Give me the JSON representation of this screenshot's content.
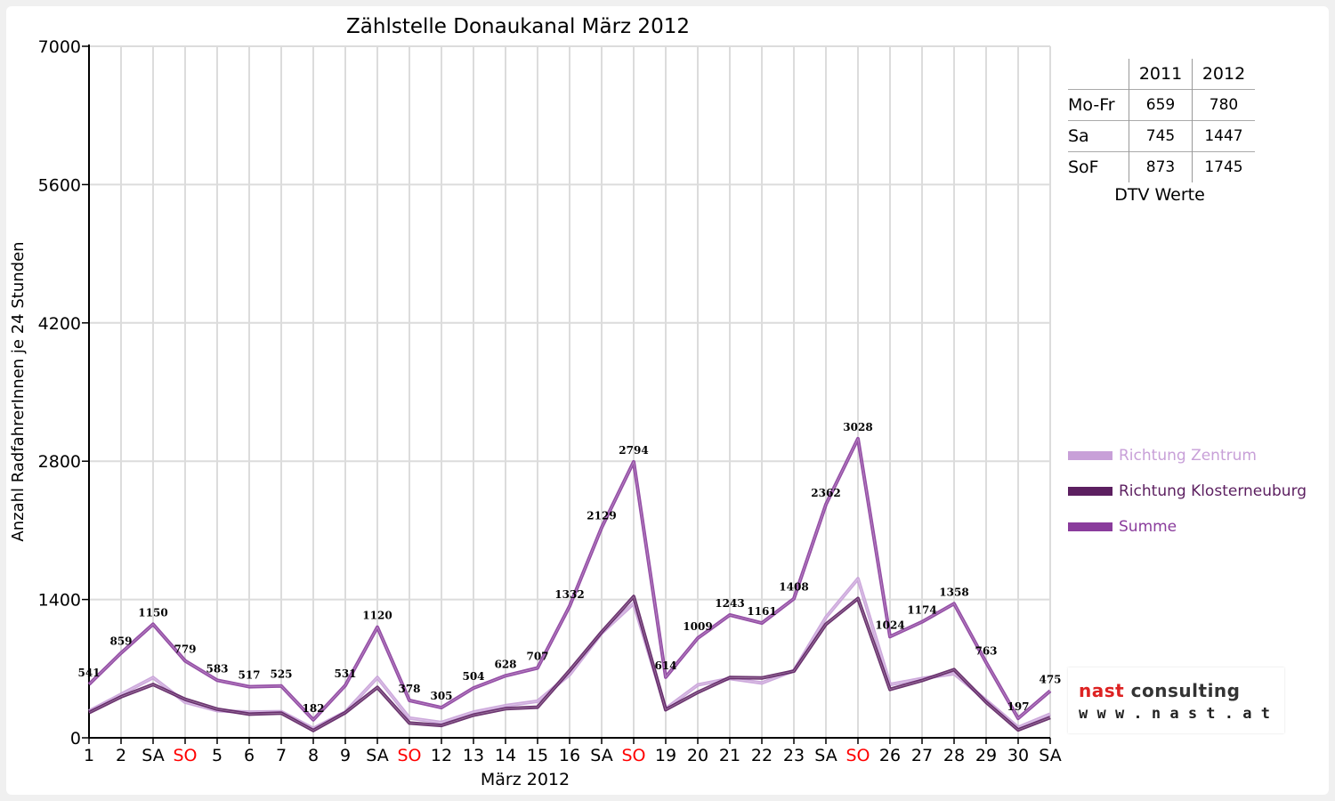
{
  "chart_data": {
    "type": "line",
    "title": "Zählstelle Donaukanal März 2012",
    "xlabel": "März 2012",
    "ylabel": "Anzahl RadfahrerInnen je 24 Stunden",
    "ylim": [
      0,
      7000
    ],
    "yticks": [
      "0",
      "1400",
      "2800",
      "4200",
      "5600",
      "7000"
    ],
    "grid": true,
    "legend_position": "right",
    "categories": [
      "1",
      "2",
      "SA",
      "SO",
      "5",
      "6",
      "7",
      "8",
      "9",
      "SA",
      "SO",
      "12",
      "13",
      "14",
      "15",
      "16",
      "SA",
      "SO",
      "19",
      "20",
      "21",
      "22",
      "23",
      "SA",
      "SO",
      "26",
      "27",
      "28",
      "29",
      "30",
      "SA"
    ],
    "weekend_colors": {
      "SO": "#ff0000"
    },
    "series": [
      {
        "name": "Richtung Zentrum",
        "color": "#c8a0d8",
        "values": [
          270,
          440,
          610,
          360,
          275,
          260,
          265,
          95,
          260,
          610,
          200,
          155,
          260,
          325,
          370,
          640,
          1060,
          1360,
          295,
          535,
          600,
          555,
          680,
          1220,
          1610,
          540,
          600,
          650,
          380,
          105,
          240
        ]
      },
      {
        "name": "Richtung Klosterneuburg",
        "color": "#5c1f60",
        "values": [
          255,
          415,
          540,
          390,
          290,
          240,
          250,
          75,
          255,
          510,
          150,
          125,
          230,
          295,
          310,
          680,
          1070,
          1430,
          285,
          460,
          610,
          605,
          675,
          1150,
          1410,
          490,
          580,
          690,
          360,
          80,
          205
        ]
      },
      {
        "name": "Summe",
        "color": "#8a3c9c",
        "values": [
          541,
          859,
          1150,
          779,
          583,
          517,
          525,
          182,
          531,
          1120,
          378,
          305,
          504,
          628,
          707,
          1332,
          2129,
          2794,
          614,
          1009,
          1243,
          1161,
          1408,
          2362,
          3028,
          1024,
          1174,
          1358,
          763,
          197,
          475
        ]
      }
    ],
    "data_labels": [
      "541",
      "859",
      "1150",
      "779",
      "583",
      "517",
      "525",
      "182",
      "531",
      "1120",
      "378",
      "305",
      "504",
      "628",
      "707",
      "1332",
      "2129",
      "2794",
      "614",
      "1009",
      "1243",
      "1161",
      "1408",
      "2362",
      "3028",
      "1024",
      "1174",
      "1358",
      "763",
      "197",
      "475"
    ]
  },
  "dtv_table": {
    "headers": [
      "2011",
      "2012"
    ],
    "rows": [
      {
        "label": "Mo-Fr",
        "v2011": "659",
        "v2012": "780"
      },
      {
        "label": "Sa",
        "v2011": "745",
        "v2012": "1447"
      },
      {
        "label": "SoF",
        "v2011": "873",
        "v2012": "1745"
      }
    ],
    "caption": "DTV Werte"
  },
  "legend": [
    {
      "label": "Richtung Zentrum",
      "color": "#c8a0d8"
    },
    {
      "label": "Richtung Klosterneuburg",
      "color": "#5c1f60"
    },
    {
      "label": "Summe",
      "color": "#8a3c9c"
    }
  ],
  "logo": {
    "word1": "nast",
    "word2": "consulting",
    "url": "w w w . n a s t . a t"
  }
}
